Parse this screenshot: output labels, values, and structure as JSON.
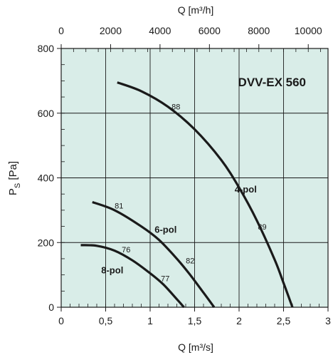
{
  "chart_data": {
    "type": "line",
    "title": "DVV-EX 560",
    "xlabel": "Q [m³/s]",
    "x2label": "Q [m³/h]",
    "ylabel_main": "P",
    "ylabel_sub": "S",
    "ylabel_unit": " [Pa]",
    "xlim": [
      0,
      3
    ],
    "ylim": [
      0,
      800
    ],
    "x2lim": [
      0,
      10800
    ],
    "grid": true,
    "background": "#d9ede8",
    "curve_color": "#1a1a1a",
    "x_ticks": [
      {
        "value": 0,
        "label": "0"
      },
      {
        "value": 0.5,
        "label": "0,5"
      },
      {
        "value": 1,
        "label": "1"
      },
      {
        "value": 1.5,
        "label": "1,5"
      },
      {
        "value": 2,
        "label": "2"
      },
      {
        "value": 2.5,
        "label": "2,5"
      },
      {
        "value": 3,
        "label": "3"
      }
    ],
    "x2_ticks": [
      {
        "value": 0,
        "label": "0"
      },
      {
        "value": 2000,
        "label": "2000"
      },
      {
        "value": 4000,
        "label": "4000"
      },
      {
        "value": 6000,
        "label": "6000"
      },
      {
        "value": 8000,
        "label": "8000"
      },
      {
        "value": 10000,
        "label": "10000"
      }
    ],
    "y_ticks": [
      {
        "value": 0,
        "label": "0"
      },
      {
        "value": 200,
        "label": "200"
      },
      {
        "value": 400,
        "label": "400"
      },
      {
        "value": 600,
        "label": "600"
      },
      {
        "value": 800,
        "label": "800"
      }
    ],
    "series": [
      {
        "name": "4-pol",
        "label_at": [
          1.95,
          355
        ],
        "x": [
          0.63,
          0.9,
          1.2,
          1.5,
          1.8,
          2.0,
          2.2,
          2.4,
          2.5,
          2.6
        ],
        "y": [
          695,
          668,
          620,
          550,
          455,
          370,
          268,
          147,
          75,
          0
        ],
        "efficiency": [
          {
            "value": "88",
            "at": [
              1.29,
              612
            ]
          },
          {
            "value": "89",
            "at": [
              2.26,
              240
            ]
          }
        ]
      },
      {
        "name": "6-pol",
        "label_at": [
          1.05,
          230
        ],
        "x": [
          0.35,
          0.6,
          0.9,
          1.1,
          1.3,
          1.45,
          1.6,
          1.72
        ],
        "y": [
          325,
          300,
          250,
          208,
          150,
          100,
          45,
          0
        ],
        "efficiency": [
          {
            "value": "81",
            "at": [
              0.65,
              305
            ]
          },
          {
            "value": "82",
            "at": [
              1.45,
              135
            ]
          }
        ]
      },
      {
        "name": "8-pol",
        "label_at": [
          0.45,
          105
        ],
        "x": [
          0.22,
          0.4,
          0.6,
          0.8,
          1.0,
          1.15,
          1.3,
          1.38
        ],
        "y": [
          192,
          190,
          175,
          145,
          105,
          70,
          25,
          0
        ],
        "efficiency": [
          {
            "value": "76",
            "at": [
              0.73,
              170
            ]
          },
          {
            "value": "77",
            "at": [
              1.17,
              80
            ]
          }
        ]
      }
    ]
  }
}
